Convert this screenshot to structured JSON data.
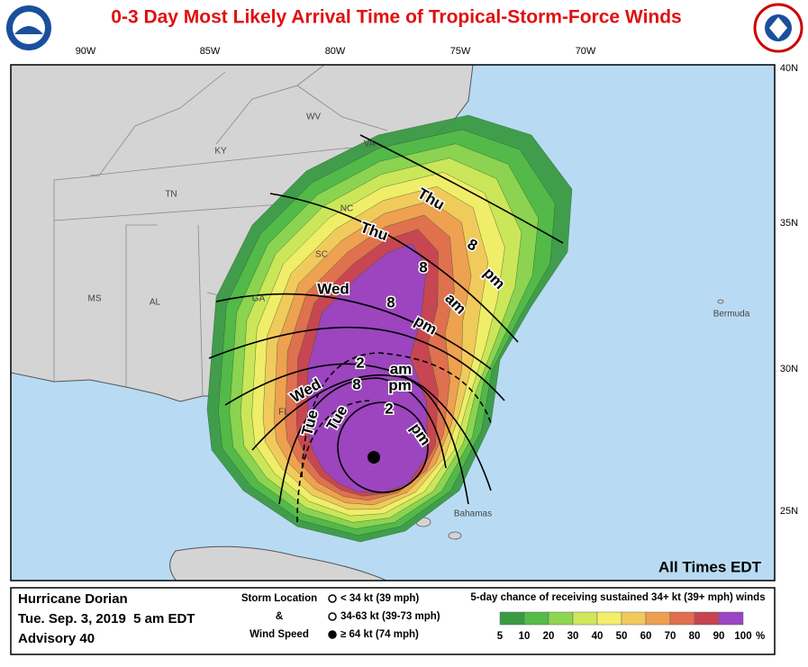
{
  "header": {
    "title": "0-3 Day Most Likely Arrival Time of Tropical-Storm-Force Winds"
  },
  "map": {
    "longitude_labels": [
      "90W",
      "85W",
      "80W",
      "75W",
      "70W"
    ],
    "latitude_labels": [
      "40N",
      "35N",
      "30N",
      "25N"
    ],
    "state_labels": [
      "WV",
      "KY",
      "VA",
      "TN",
      "NC",
      "SC",
      "GA",
      "MS",
      "AL",
      "FL"
    ],
    "place_labels": [
      "Bermuda",
      "Bahamas"
    ],
    "time_labels": [
      "Thu",
      "8",
      "pm",
      "Thu",
      "8",
      "am",
      "Wed",
      "8",
      "pm",
      "2",
      "am",
      "8",
      "pm",
      "Wed",
      "Tue",
      "Tue",
      "2",
      "pm"
    ],
    "note": "All Times EDT"
  },
  "footer": {
    "storm": "Hurricane Dorian",
    "datetime": "Tue. Sep. 3, 2019  5 am EDT",
    "advisory": "Advisory 40",
    "storm_location": {
      "title_lines": [
        "Storm Location",
        "&",
        "Wind Speed"
      ],
      "items": [
        "< 34 kt (39 mph)",
        "34-63 kt (39-73 mph)",
        "≥ 64 kt (74 mph)"
      ]
    },
    "probability": {
      "title": "5-day chance of receiving sustained 34+ kt (39+ mph) winds",
      "levels": [
        5,
        10,
        20,
        30,
        40,
        50,
        60,
        70,
        80,
        90,
        100
      ],
      "unit": "%",
      "colors": [
        "#3a9a44",
        "#55bb48",
        "#8fd552",
        "#cfe85a",
        "#f3ee6a",
        "#f2c95c",
        "#ee9f50",
        "#df6f4f",
        "#c64452",
        "#9a45c4"
      ]
    }
  }
}
